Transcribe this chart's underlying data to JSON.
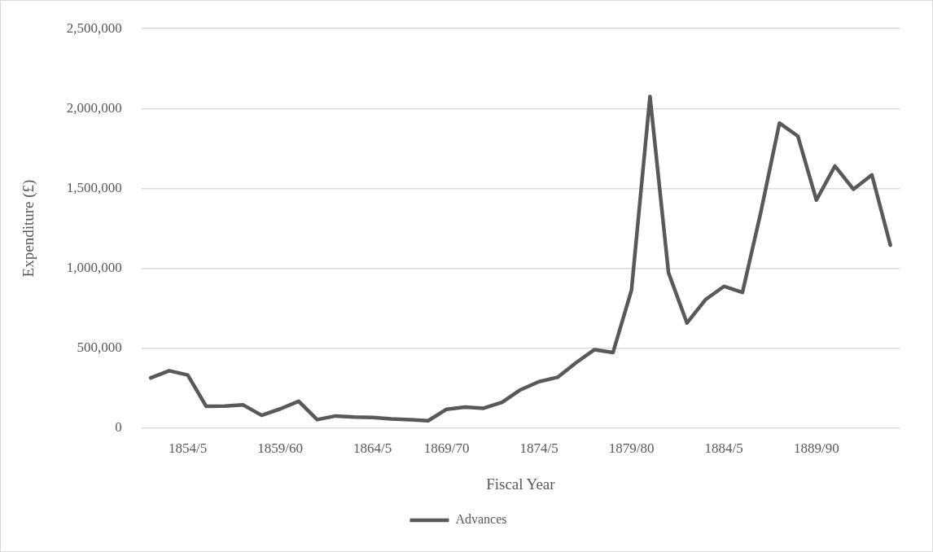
{
  "chart_data": {
    "type": "line",
    "xlabel": "Fiscal Year",
    "ylabel": "Expenditure (£)",
    "categories": [
      null,
      null,
      "1854/5",
      null,
      null,
      null,
      null,
      "1859/60",
      null,
      null,
      null,
      null,
      "1864/5",
      null,
      null,
      null,
      "1869/70",
      null,
      null,
      null,
      null,
      "1874/5",
      null,
      null,
      null,
      null,
      "1879/80",
      null,
      null,
      null,
      null,
      "1884/5",
      null,
      null,
      null,
      null,
      "1889/90",
      null,
      null,
      null,
      null
    ],
    "series": [
      {
        "name": "Advances",
        "color": "#595959",
        "values": [
          314000,
          359000,
          332000,
          136000,
          138000,
          145000,
          80000,
          120000,
          168000,
          53000,
          76000,
          69000,
          67000,
          57000,
          53000,
          46000,
          118000,
          131000,
          124000,
          161000,
          240000,
          291000,
          318000,
          409000,
          491000,
          473000,
          864000,
          2076000,
          973000,
          658000,
          804000,
          887000,
          849000,
          1355000,
          1909000,
          1827000,
          1427000,
          1640000,
          1495000,
          1585000,
          1145000
        ]
      }
    ],
    "ylim": [
      0,
      2500000
    ],
    "yticks": [
      {
        "value": 0,
        "label": "0"
      },
      {
        "value": 500000,
        "label": "500,000"
      },
      {
        "value": 1000000,
        "label": "1,000,000"
      },
      {
        "value": 1500000,
        "label": "1,500,000"
      },
      {
        "value": 2000000,
        "label": "2,000,000"
      },
      {
        "value": 2500000,
        "label": "2,500,000"
      }
    ],
    "grid": "y",
    "legend": "bottom",
    "marker": "none",
    "line_style": "solid"
  }
}
